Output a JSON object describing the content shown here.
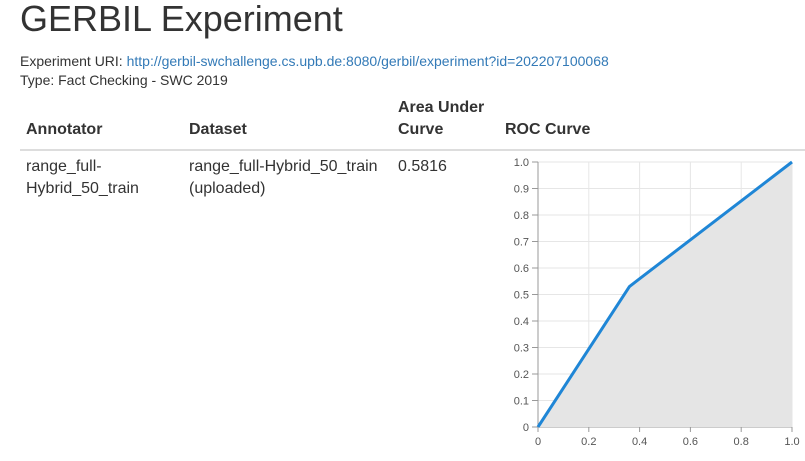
{
  "page": {
    "title": "GERBIL Experiment",
    "uri_label": "Experiment URI:",
    "uri_link": "http://gerbil-swchallenge.cs.upb.de:8080/gerbil/experiment?id=202207100068",
    "type_text": "Type: Fact Checking - SWC 2019"
  },
  "table": {
    "headers": {
      "annotator": "Annotator",
      "dataset": "Dataset",
      "auc_line1": "Area Under",
      "auc_line2": "Curve",
      "roc": "ROC Curve"
    },
    "row": {
      "annotator_line1": "range_full-",
      "annotator_line2": "Hybrid_50_train",
      "dataset_line1": "range_full-Hybrid_50_train",
      "dataset_line2": "(uploaded)",
      "auc": "0.5816"
    }
  },
  "chart_data": {
    "type": "area",
    "x": [
      0,
      0.36,
      1.0
    ],
    "y": [
      0,
      0.53,
      1.0
    ],
    "xlim": [
      0,
      1
    ],
    "ylim": [
      0,
      1
    ],
    "x_ticks": [
      "0",
      "0.2",
      "0.4",
      "0.6",
      "0.8",
      "1.0"
    ],
    "y_ticks": [
      "0",
      "0.1",
      "0.2",
      "0.3",
      "0.4",
      "0.5",
      "0.6",
      "0.7",
      "0.8",
      "0.9",
      "1.0"
    ],
    "grid": true,
    "line_color": "#1f86d6",
    "fill_color": "#e5e5e5"
  }
}
